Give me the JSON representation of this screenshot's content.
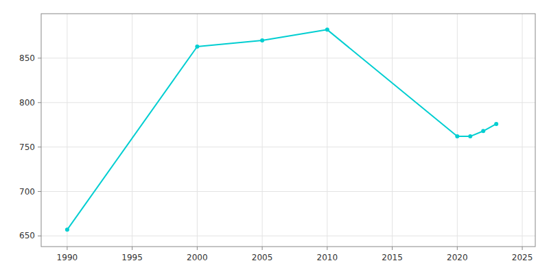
{
  "chart_data": {
    "type": "line",
    "x": [
      1990,
      2000,
      2005,
      2010,
      2020,
      2021,
      2022,
      2023
    ],
    "values": [
      657,
      863,
      870,
      882,
      762,
      762,
      768,
      776
    ],
    "color": "#00CED1",
    "marker": "circle",
    "xlim": [
      1988,
      2026
    ],
    "ylim": [
      638,
      900
    ],
    "xticks": [
      1990,
      1995,
      2000,
      2005,
      2010,
      2015,
      2020,
      2025
    ],
    "yticks": [
      650,
      700,
      750,
      800,
      850
    ],
    "grid": true
  }
}
